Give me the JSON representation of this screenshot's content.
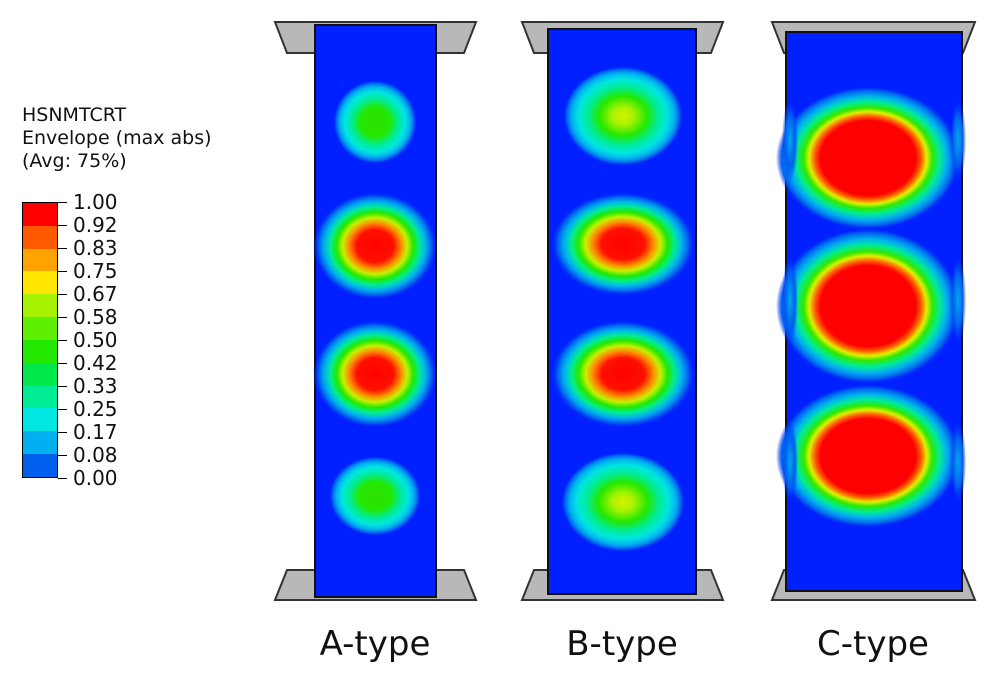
{
  "legend": {
    "title_lines": [
      "HSNMTCRT",
      "Envelope (max abs)",
      "(Avg: 75%)"
    ],
    "levels": [
      {
        "label": "1.00",
        "color": "#ff0000"
      },
      {
        "label": "0.92",
        "color": "#ff5a00"
      },
      {
        "label": "0.83",
        "color": "#ffa300"
      },
      {
        "label": "0.75",
        "color": "#ffe600"
      },
      {
        "label": "0.67",
        "color": "#a6f200"
      },
      {
        "label": "0.58",
        "color": "#5ef000"
      },
      {
        "label": "0.50",
        "color": "#24e800"
      },
      {
        "label": "0.42",
        "color": "#00e84a"
      },
      {
        "label": "0.33",
        "color": "#00ec95"
      },
      {
        "label": "0.25",
        "color": "#00e6e0"
      },
      {
        "label": "0.17",
        "color": "#00b0f0"
      },
      {
        "label": "0.08",
        "color": "#0060ee"
      },
      {
        "label": "0.00",
        "color": "#0020ff"
      }
    ]
  },
  "panels": [
    {
      "label": "A-type"
    },
    {
      "label": "B-type"
    },
    {
      "label": "C-type"
    }
  ]
}
